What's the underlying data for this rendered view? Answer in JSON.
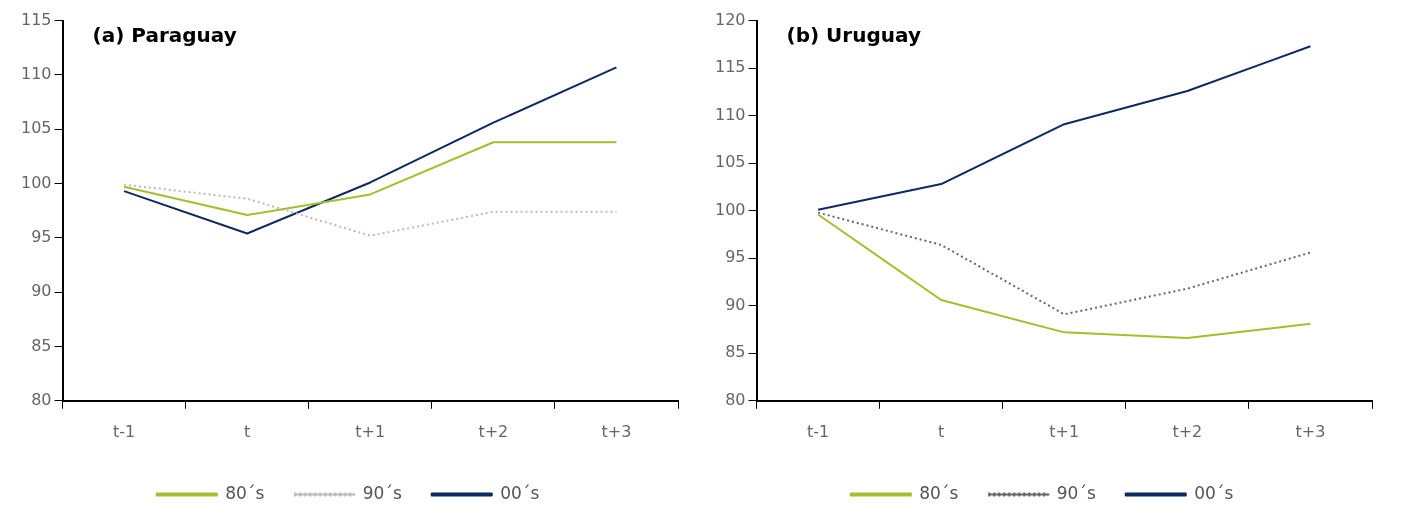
{
  "chart_data": [
    {
      "type": "line",
      "title": "(a) Paraguay",
      "categories": [
        "t-1",
        "t",
        "t+1",
        "t+2",
        "t+3"
      ],
      "ylim": [
        80,
        115
      ],
      "yticks": [
        80,
        85,
        90,
        95,
        100,
        105,
        110,
        115
      ],
      "grid": false,
      "legend": "bottom",
      "marker": "none",
      "series": [
        {
          "name": "80´s",
          "color": "#a4be2c",
          "values": [
            99.7,
            97.1,
            99.0,
            103.8,
            103.8
          ],
          "line_style": "solid"
        },
        {
          "name": "90´s",
          "color": "#bbbbbb",
          "values": [
            99.9,
            98.6,
            95.2,
            97.4,
            97.4
          ],
          "line_style": "dotted"
        },
        {
          "name": "00´s",
          "color": "#0d2a5e",
          "values": [
            99.3,
            95.4,
            100.1,
            105.6,
            110.7
          ],
          "line_style": "solid"
        }
      ]
    },
    {
      "type": "line",
      "title": "(b) Uruguay",
      "categories": [
        "t-1",
        "t",
        "t+1",
        "t+2",
        "t+3"
      ],
      "ylim": [
        80,
        120
      ],
      "yticks": [
        80,
        85,
        90,
        95,
        100,
        105,
        110,
        115,
        120
      ],
      "grid": false,
      "legend": "bottom",
      "marker": "none",
      "series": [
        {
          "name": "80´s",
          "color": "#a4be2c",
          "values": [
            99.6,
            90.6,
            87.2,
            86.6,
            88.1
          ],
          "line_style": "solid"
        },
        {
          "name": "90´s",
          "color": "#666666",
          "values": [
            99.8,
            96.4,
            89.1,
            91.8,
            95.6
          ],
          "line_style": "dotted"
        },
        {
          "name": "00´s",
          "color": "#0d2a5e",
          "values": [
            100.1,
            102.8,
            109.1,
            112.6,
            117.3
          ],
          "line_style": "solid"
        }
      ]
    }
  ]
}
